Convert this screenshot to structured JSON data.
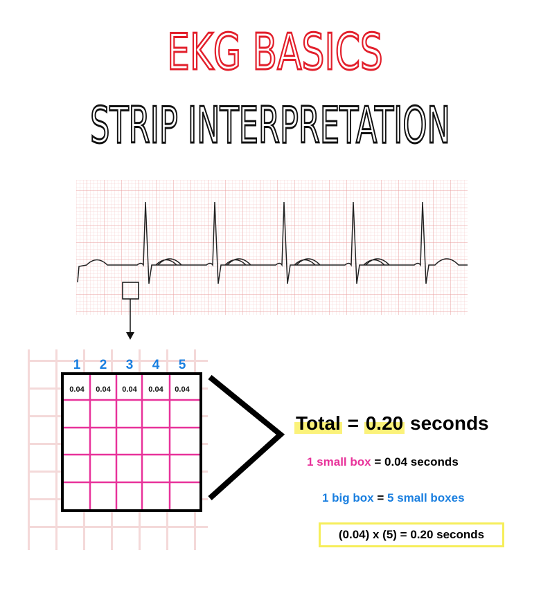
{
  "title": "EKG BASICS",
  "subtitle": "STRIP INTERPRETATION",
  "grid": {
    "column_numbers": [
      "1",
      "2",
      "3",
      "4",
      "5"
    ],
    "cell_labels": [
      "0.04",
      "0.04",
      "0.04",
      "0.04",
      "0.04"
    ]
  },
  "total": {
    "label": "Total",
    "equals": "=",
    "value": "0.20",
    "unit": "seconds"
  },
  "notes": {
    "small_box": {
      "term": "1 small box",
      "rest": "= 0.04 seconds"
    },
    "big_box": {
      "term": "1 big box",
      "equals": "=",
      "rest": "5 small boxes"
    },
    "formula": "(0.04) x (5) = 0.20 seconds"
  }
}
